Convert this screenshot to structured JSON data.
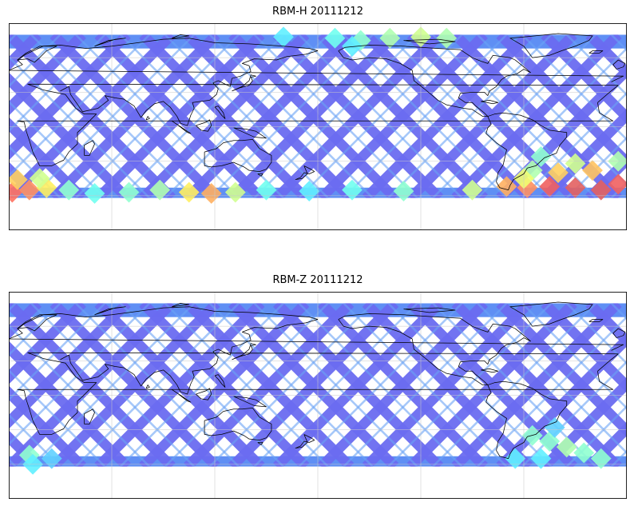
{
  "maps": [
    {
      "title": "RBM-H 20111212",
      "hot_zones": [
        {
          "lon": 2,
          "lat": -57,
          "level": 0.85
        },
        {
          "lon": 12,
          "lat": -55,
          "level": 0.8
        },
        {
          "lon": 22,
          "lat": -53,
          "level": 0.65
        },
        {
          "lon": 5,
          "lat": -46,
          "level": 0.7
        },
        {
          "lon": 18,
          "lat": -45,
          "level": 0.55
        },
        {
          "lon": 35,
          "lat": -55,
          "level": 0.45
        },
        {
          "lon": 50,
          "lat": -58,
          "level": 0.4
        },
        {
          "lon": 70,
          "lat": -57,
          "level": 0.45
        },
        {
          "lon": 88,
          "lat": -55,
          "level": 0.5
        },
        {
          "lon": 105,
          "lat": -57,
          "level": 0.65
        },
        {
          "lon": 118,
          "lat": -58,
          "level": 0.75
        },
        {
          "lon": 132,
          "lat": -57,
          "level": 0.55
        },
        {
          "lon": 150,
          "lat": -55,
          "level": 0.4
        },
        {
          "lon": 175,
          "lat": -56,
          "level": 0.35
        },
        {
          "lon": 200,
          "lat": -55,
          "level": 0.4
        },
        {
          "lon": 230,
          "lat": -56,
          "level": 0.45
        },
        {
          "lon": 270,
          "lat": -55,
          "level": 0.55
        },
        {
          "lon": 290,
          "lat": -52,
          "level": 0.75
        },
        {
          "lon": 302,
          "lat": -53,
          "level": 0.8
        },
        {
          "lon": 315,
          "lat": -52,
          "level": 0.9
        },
        {
          "lon": 330,
          "lat": -53,
          "level": 0.92
        },
        {
          "lon": 345,
          "lat": -55,
          "level": 0.92
        },
        {
          "lon": 355,
          "lat": -50,
          "level": 0.9
        },
        {
          "lon": 320,
          "lat": -40,
          "level": 0.7
        },
        {
          "lon": 340,
          "lat": -38,
          "level": 0.72
        },
        {
          "lon": 330,
          "lat": -32,
          "level": 0.55
        },
        {
          "lon": 305,
          "lat": -38,
          "level": 0.5
        },
        {
          "lon": 310,
          "lat": -26,
          "level": 0.45
        },
        {
          "lon": 300,
          "lat": -45,
          "level": 0.6
        },
        {
          "lon": 355,
          "lat": -30,
          "level": 0.5
        },
        {
          "lon": 160,
          "lat": 78,
          "level": 0.35
        },
        {
          "lon": 190,
          "lat": 77,
          "level": 0.4
        },
        {
          "lon": 205,
          "lat": 75,
          "level": 0.45
        },
        {
          "lon": 222,
          "lat": 77,
          "level": 0.5
        },
        {
          "lon": 240,
          "lat": 78,
          "level": 0.55
        },
        {
          "lon": 255,
          "lat": 77,
          "level": 0.5
        },
        {
          "lon": 200,
          "lat": 70,
          "level": 0.35
        }
      ]
    },
    {
      "title": "RBM-Z 20111212",
      "hot_zones": [
        {
          "lon": 12,
          "lat": -52,
          "level": 0.45
        },
        {
          "lon": 14,
          "lat": -60,
          "level": 0.35
        },
        {
          "lon": 25,
          "lat": -55,
          "level": 0.3
        },
        {
          "lon": 305,
          "lat": -35,
          "level": 0.45
        },
        {
          "lon": 315,
          "lat": -40,
          "level": 0.45
        },
        {
          "lon": 325,
          "lat": -45,
          "level": 0.5
        },
        {
          "lon": 335,
          "lat": -50,
          "level": 0.45
        },
        {
          "lon": 345,
          "lat": -55,
          "level": 0.45
        },
        {
          "lon": 310,
          "lat": -55,
          "level": 0.35
        },
        {
          "lon": 295,
          "lat": -55,
          "level": 0.35
        },
        {
          "lon": 318,
          "lat": -28,
          "level": 0.3
        }
      ]
    }
  ]
}
